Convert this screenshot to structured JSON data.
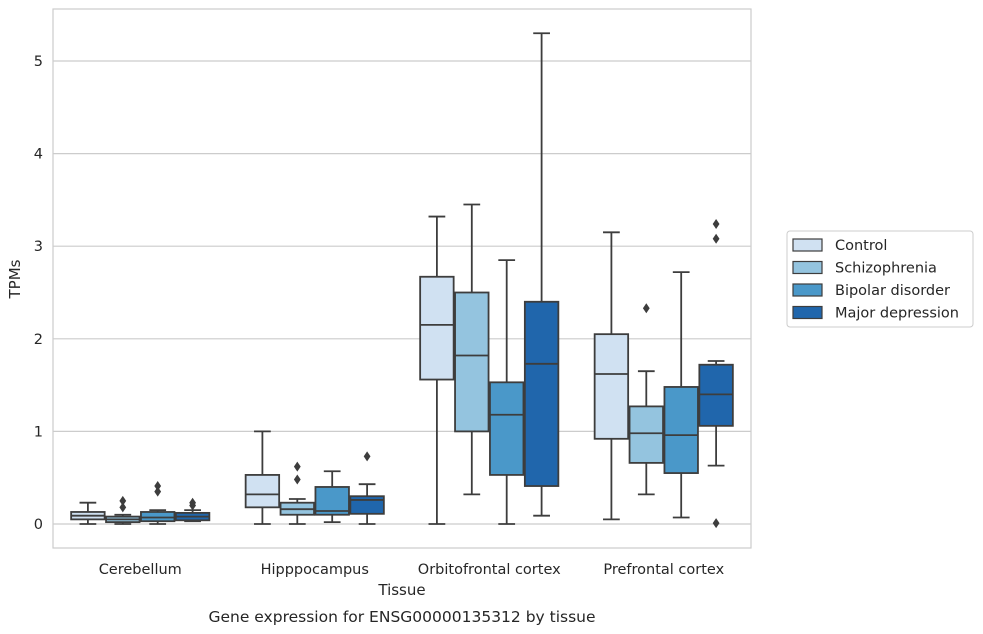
{
  "caption": "Gene expression for ENSG00000135312 by tissue",
  "chart_data": {
    "type": "box",
    "xlabel": "Tissue",
    "ylabel": "TPMs",
    "ylim": [
      -0.25,
      5.6
    ],
    "yticks": [
      0,
      1,
      2,
      3,
      4,
      5
    ],
    "grid": "horizontal",
    "legend_position": "right",
    "categories": [
      "Cerebellum",
      "Hipppocampus",
      "Orbitofrontal cortex",
      "Prefrontal cortex"
    ],
    "series": [
      {
        "name": "Control",
        "color": "#d0e1f2",
        "boxes": [
          {
            "whislo": 0.0,
            "q1": 0.05,
            "med": 0.09,
            "q3": 0.13,
            "whishi": 0.23,
            "fliers": []
          },
          {
            "whislo": 0.0,
            "q1": 0.18,
            "med": 0.32,
            "q3": 0.53,
            "whishi": 1.0,
            "fliers": []
          },
          {
            "whislo": 0.0,
            "q1": 1.56,
            "med": 2.15,
            "q3": 2.67,
            "whishi": 3.32,
            "fliers": []
          },
          {
            "whislo": 0.05,
            "q1": 0.92,
            "med": 1.62,
            "q3": 2.05,
            "whishi": 3.15,
            "fliers": []
          }
        ]
      },
      {
        "name": "Schizophrenia",
        "color": "#94c4df",
        "boxes": [
          {
            "whislo": 0.0,
            "q1": 0.02,
            "med": 0.05,
            "q3": 0.08,
            "whishi": 0.1,
            "fliers": [
              0.18,
              0.25
            ]
          },
          {
            "whislo": 0.0,
            "q1": 0.1,
            "med": 0.16,
            "q3": 0.23,
            "whishi": 0.27,
            "fliers": [
              0.48,
              0.62
            ]
          },
          {
            "whislo": 0.32,
            "q1": 1.0,
            "med": 1.82,
            "q3": 2.5,
            "whishi": 3.45,
            "fliers": []
          },
          {
            "whislo": 0.32,
            "q1": 0.66,
            "med": 0.98,
            "q3": 1.27,
            "whishi": 1.65,
            "fliers": [
              2.33
            ]
          }
        ]
      },
      {
        "name": "Bipolar disorder",
        "color": "#4a98c9",
        "boxes": [
          {
            "whislo": 0.0,
            "q1": 0.03,
            "med": 0.07,
            "q3": 0.13,
            "whishi": 0.15,
            "fliers": [
              0.35,
              0.41
            ]
          },
          {
            "whislo": 0.02,
            "q1": 0.1,
            "med": 0.14,
            "q3": 0.4,
            "whishi": 0.57,
            "fliers": []
          },
          {
            "whislo": 0.0,
            "q1": 0.53,
            "med": 1.18,
            "q3": 1.53,
            "whishi": 2.85,
            "fliers": []
          },
          {
            "whislo": 0.07,
            "q1": 0.55,
            "med": 0.96,
            "q3": 1.48,
            "whishi": 2.72,
            "fliers": []
          }
        ]
      },
      {
        "name": "Major depression",
        "color": "#2066ac",
        "boxes": [
          {
            "whislo": 0.03,
            "q1": 0.04,
            "med": 0.08,
            "q3": 0.12,
            "whishi": 0.15,
            "fliers": [
              0.2,
              0.23
            ]
          },
          {
            "whislo": 0.0,
            "q1": 0.11,
            "med": 0.26,
            "q3": 0.3,
            "whishi": 0.43,
            "fliers": [
              0.73
            ]
          },
          {
            "whislo": 0.09,
            "q1": 0.41,
            "med": 1.73,
            "q3": 2.4,
            "whishi": 5.3,
            "fliers": []
          },
          {
            "whislo": 0.63,
            "q1": 1.06,
            "med": 1.4,
            "q3": 1.72,
            "whishi": 1.76,
            "fliers": [
              0.01,
              3.08,
              3.24
            ]
          }
        ]
      }
    ]
  }
}
